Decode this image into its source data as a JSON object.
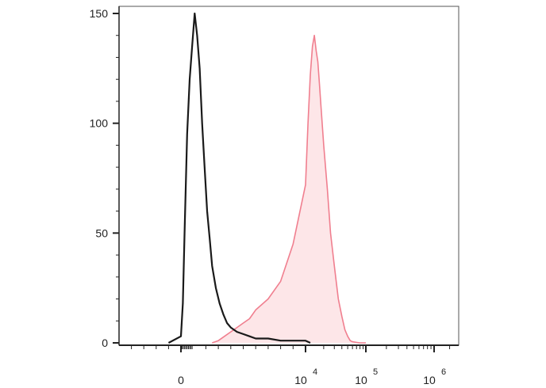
{
  "chart_data": {
    "type": "area",
    "title": "",
    "xlabel": "",
    "ylabel": "",
    "x_scale": "biexponential",
    "ylim": [
      0,
      152
    ],
    "grid": false,
    "legend": "none",
    "y_ticks": [
      {
        "value": 0,
        "label": "0"
      },
      {
        "value": 50,
        "label": "50"
      },
      {
        "value": 100,
        "label": "100"
      },
      {
        "value": 150,
        "label": "150"
      }
    ],
    "x_ticks": [
      {
        "value": 0,
        "base": "0",
        "exp": ""
      },
      {
        "value": 10000,
        "base": "10",
        "exp": "4"
      },
      {
        "value": 100000,
        "base": "10",
        "exp": "5"
      },
      {
        "value": 1000000,
        "base": "10",
        "exp": "6"
      }
    ],
    "series": [
      {
        "color": "#1a1a1a",
        "fill": "none",
        "x": [
          -100,
          0,
          50,
          150,
          300,
          500,
          700,
          900,
          1100,
          1300,
          1500,
          1700,
          1900,
          2100,
          2300,
          2500,
          2800,
          3100,
          3400,
          3700,
          4000,
          4500,
          5000,
          5500,
          6000,
          7000,
          8000,
          9000,
          10000,
          12000
        ],
        "values": [
          0,
          3,
          8,
          18,
          52,
          95,
          120,
          135,
          150,
          140,
          125,
          100,
          80,
          60,
          48,
          35,
          25,
          18,
          13,
          9,
          7,
          5,
          4,
          3,
          2,
          2,
          1,
          1,
          1,
          0
        ]
      },
      {
        "color": "#f07f8f",
        "fill": "#fde6e8",
        "x": [
          2500,
          3000,
          3500,
          4000,
          4500,
          5000,
          5500,
          6000,
          7000,
          8000,
          9000,
          10000,
          11000,
          12000,
          13000,
          14000,
          15000,
          16000,
          17000,
          18000,
          20000,
          23000,
          26000,
          30000,
          35000,
          40000,
          45000,
          50000,
          55000,
          60000,
          70000,
          80000,
          100000
        ],
        "values": [
          0,
          1,
          3,
          5,
          7,
          9,
          11,
          15,
          20,
          28,
          45,
          72,
          100,
          122,
          135,
          140,
          133,
          128,
          118,
          108,
          90,
          70,
          50,
          35,
          20,
          12,
          6,
          3,
          1,
          0.5,
          0.2,
          0,
          0
        ]
      }
    ]
  }
}
